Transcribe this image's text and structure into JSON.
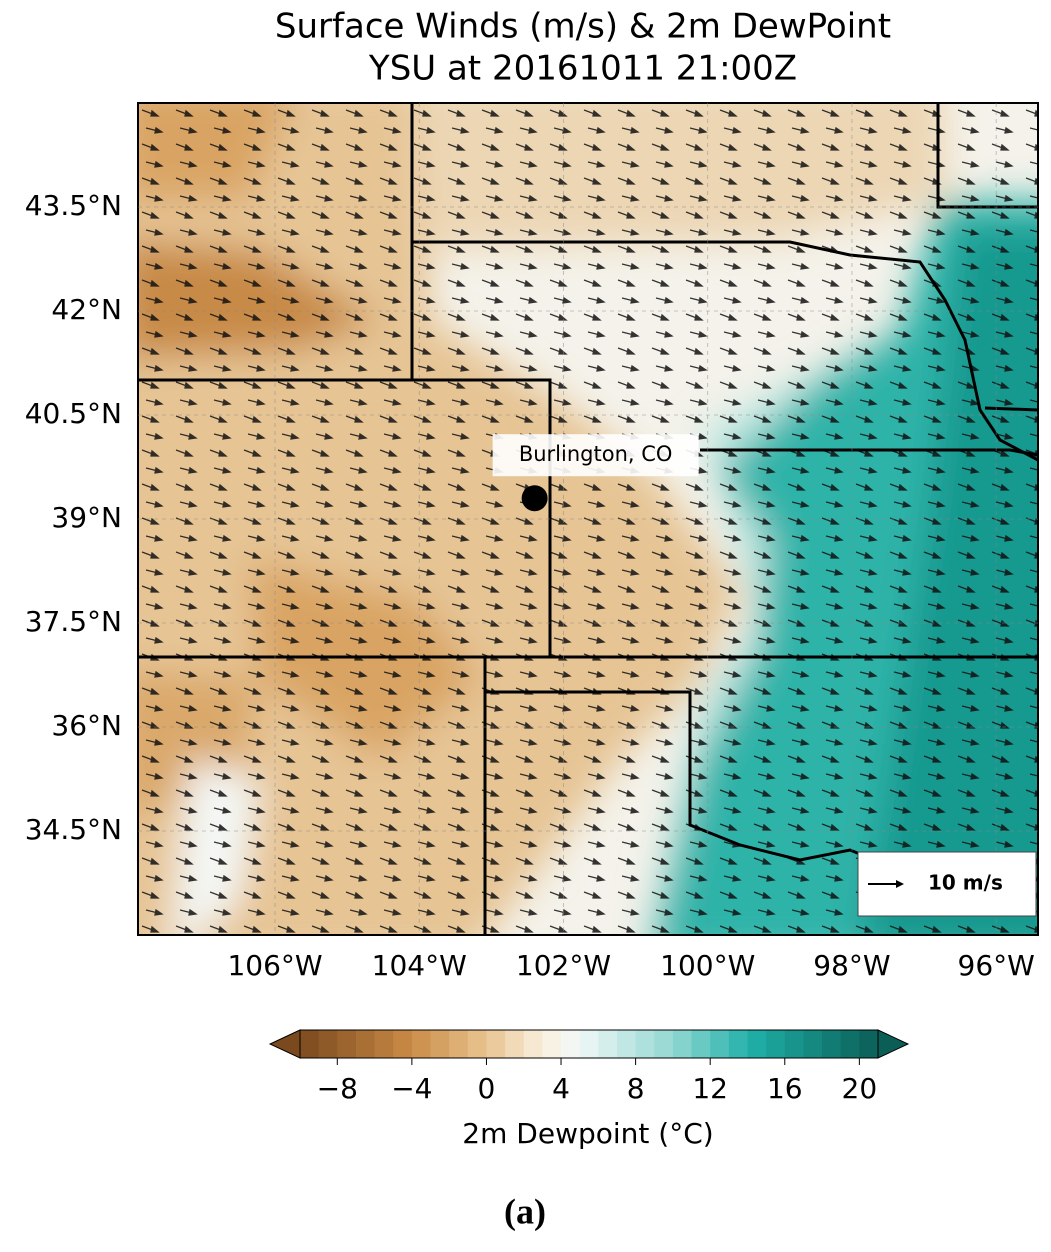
{
  "map": {
    "title": [
      "Surface Winds (m/s) & 2m DewPoint",
      "YSU at 20161011 21:00Z"
    ],
    "xlim": [
      -107.9,
      -95.42
    ],
    "ylim": [
      33,
      45
    ],
    "lat_ticks": [
      {
        "value": 43.5,
        "label": "43.5°N"
      },
      {
        "value": 42,
        "label": "42°N"
      },
      {
        "value": 40.5,
        "label": "40.5°N"
      },
      {
        "value": 39,
        "label": "39°N"
      },
      {
        "value": 37.5,
        "label": "37.5°N"
      },
      {
        "value": 36,
        "label": "36°N"
      },
      {
        "value": 34.5,
        "label": "34.5°N"
      }
    ],
    "lon_ticks": [
      {
        "value": -106,
        "label": "106°W"
      },
      {
        "value": -104,
        "label": "104°W"
      },
      {
        "value": -102,
        "label": "102°W"
      },
      {
        "value": -100,
        "label": "100°W"
      },
      {
        "value": -98,
        "label": "98°W"
      },
      {
        "value": -96,
        "label": "96°W"
      }
    ],
    "point": {
      "label": "Burlington, CO",
      "lon": -102.4,
      "lat": 39.3
    },
    "wind_key": {
      "label": "10 m/s"
    },
    "colorbar": {
      "lim": [
        -10,
        21
      ],
      "ticks": [
        {
          "value": -8,
          "label": "−8"
        },
        {
          "value": -4,
          "label": "−4"
        },
        0,
        4,
        8,
        12,
        16,
        20
      ],
      "label": "2m Dewpoint (°C)"
    },
    "caption": "(a)"
  }
}
